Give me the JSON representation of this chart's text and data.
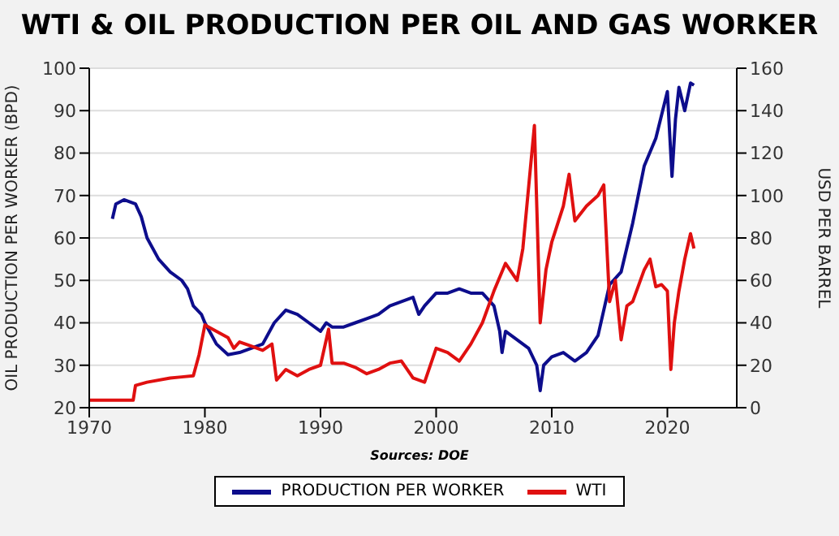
{
  "chart_data": {
    "type": "line",
    "title": "WTI & OIL PRODUCTION PER OIL AND GAS WORKER",
    "ylabel": "OIL PRODUCTION PER WORKER (BPD)",
    "y2label": "USD PER BARREL",
    "annotations": [
      "Sources: DOE"
    ],
    "xlim": [
      1970,
      2026
    ],
    "xticks": [
      1970,
      1980,
      1990,
      2000,
      2010,
      2020
    ],
    "ylim": [
      20,
      100
    ],
    "yticks": [
      20,
      30,
      40,
      50,
      60,
      70,
      80,
      90,
      100
    ],
    "y2lim": [
      0,
      160
    ],
    "y2ticks": [
      0,
      20,
      40,
      60,
      80,
      100,
      120,
      140,
      160
    ],
    "grid": "y",
    "legend": "bottom",
    "line_style": "solid",
    "series": [
      {
        "name": "PRODUCTION PER WORKER",
        "color": "#0d0d8c",
        "x": [
          1972,
          1972.3,
          1973,
          1974,
          1974.5,
          1975,
          1976,
          1977,
          1978,
          1978.5,
          1979,
          1979.7,
          1980,
          1981,
          1982,
          1983,
          1984,
          1985,
          1986,
          1987,
          1988,
          1989,
          1990,
          1990.5,
          1991,
          1992,
          1993,
          1994,
          1995,
          1996,
          1997,
          1998,
          1998.5,
          1999,
          2000,
          2001,
          2002,
          2003,
          2004,
          2005,
          2005.5,
          2005.7,
          2006,
          2007,
          2008,
          2008.7,
          2009,
          2009.3,
          2010,
          2011,
          2012,
          2013,
          2014,
          2015,
          2016,
          2017,
          2018,
          2019,
          2020,
          2020.4,
          2020.7,
          2021,
          2021.5,
          2022,
          2022.3
        ],
        "values": [
          64.5,
          68,
          69,
          68,
          65,
          60,
          55,
          52,
          50,
          48,
          44,
          42,
          40,
          35,
          32.5,
          33,
          34,
          35,
          40,
          43,
          42,
          40,
          38,
          40,
          39,
          39,
          40,
          41,
          42,
          44,
          45,
          46,
          42,
          44,
          47,
          47,
          48,
          47,
          47,
          44,
          38,
          33,
          38,
          36,
          34,
          30,
          24,
          30,
          32,
          33,
          31,
          33,
          37,
          49,
          52,
          63.5,
          77,
          83.5,
          94.5,
          74.5,
          88,
          95.5,
          90,
          96.5,
          96
        ]
      },
      {
        "name": "WTI",
        "color": "#e01010",
        "axis": "y2",
        "x": [
          1970,
          1973.8,
          1974,
          1975,
          1977,
          1978,
          1979,
          1979.5,
          1980,
          1981,
          1982,
          1982.5,
          1983,
          1984,
          1985,
          1985.8,
          1986.2,
          1987,
          1988,
          1989,
          1990,
          1990.7,
          1991,
          1992,
          1993,
          1994,
          1995,
          1996,
          1997,
          1998,
          1999,
          2000,
          2001,
          2002,
          2003,
          2004,
          2005,
          2006,
          2007,
          2007.5,
          2008.5,
          2009,
          2009.5,
          2010,
          2011,
          2011.5,
          2012,
          2013,
          2014,
          2014.5,
          2015,
          2015.5,
          2016,
          2016.5,
          2017,
          2018,
          2018.5,
          2019,
          2019.5,
          2020,
          2020.3,
          2020.6,
          2021,
          2021.5,
          2022,
          2022.3
        ],
        "values": [
          3.5,
          3.5,
          10.5,
          12,
          14,
          14.5,
          15,
          25,
          39,
          36,
          33,
          28,
          31,
          29,
          27,
          30,
          13,
          18,
          15,
          18,
          20,
          37,
          21,
          21,
          19,
          16,
          18,
          21,
          22,
          14,
          12,
          28,
          26,
          22,
          30,
          40,
          55,
          68,
          60,
          75,
          133,
          40,
          65,
          78,
          95,
          110,
          88,
          95,
          100,
          105,
          50,
          60,
          32,
          48,
          50,
          65,
          70,
          57,
          58,
          55,
          18,
          40,
          55,
          70,
          82,
          75
        ]
      }
    ]
  }
}
